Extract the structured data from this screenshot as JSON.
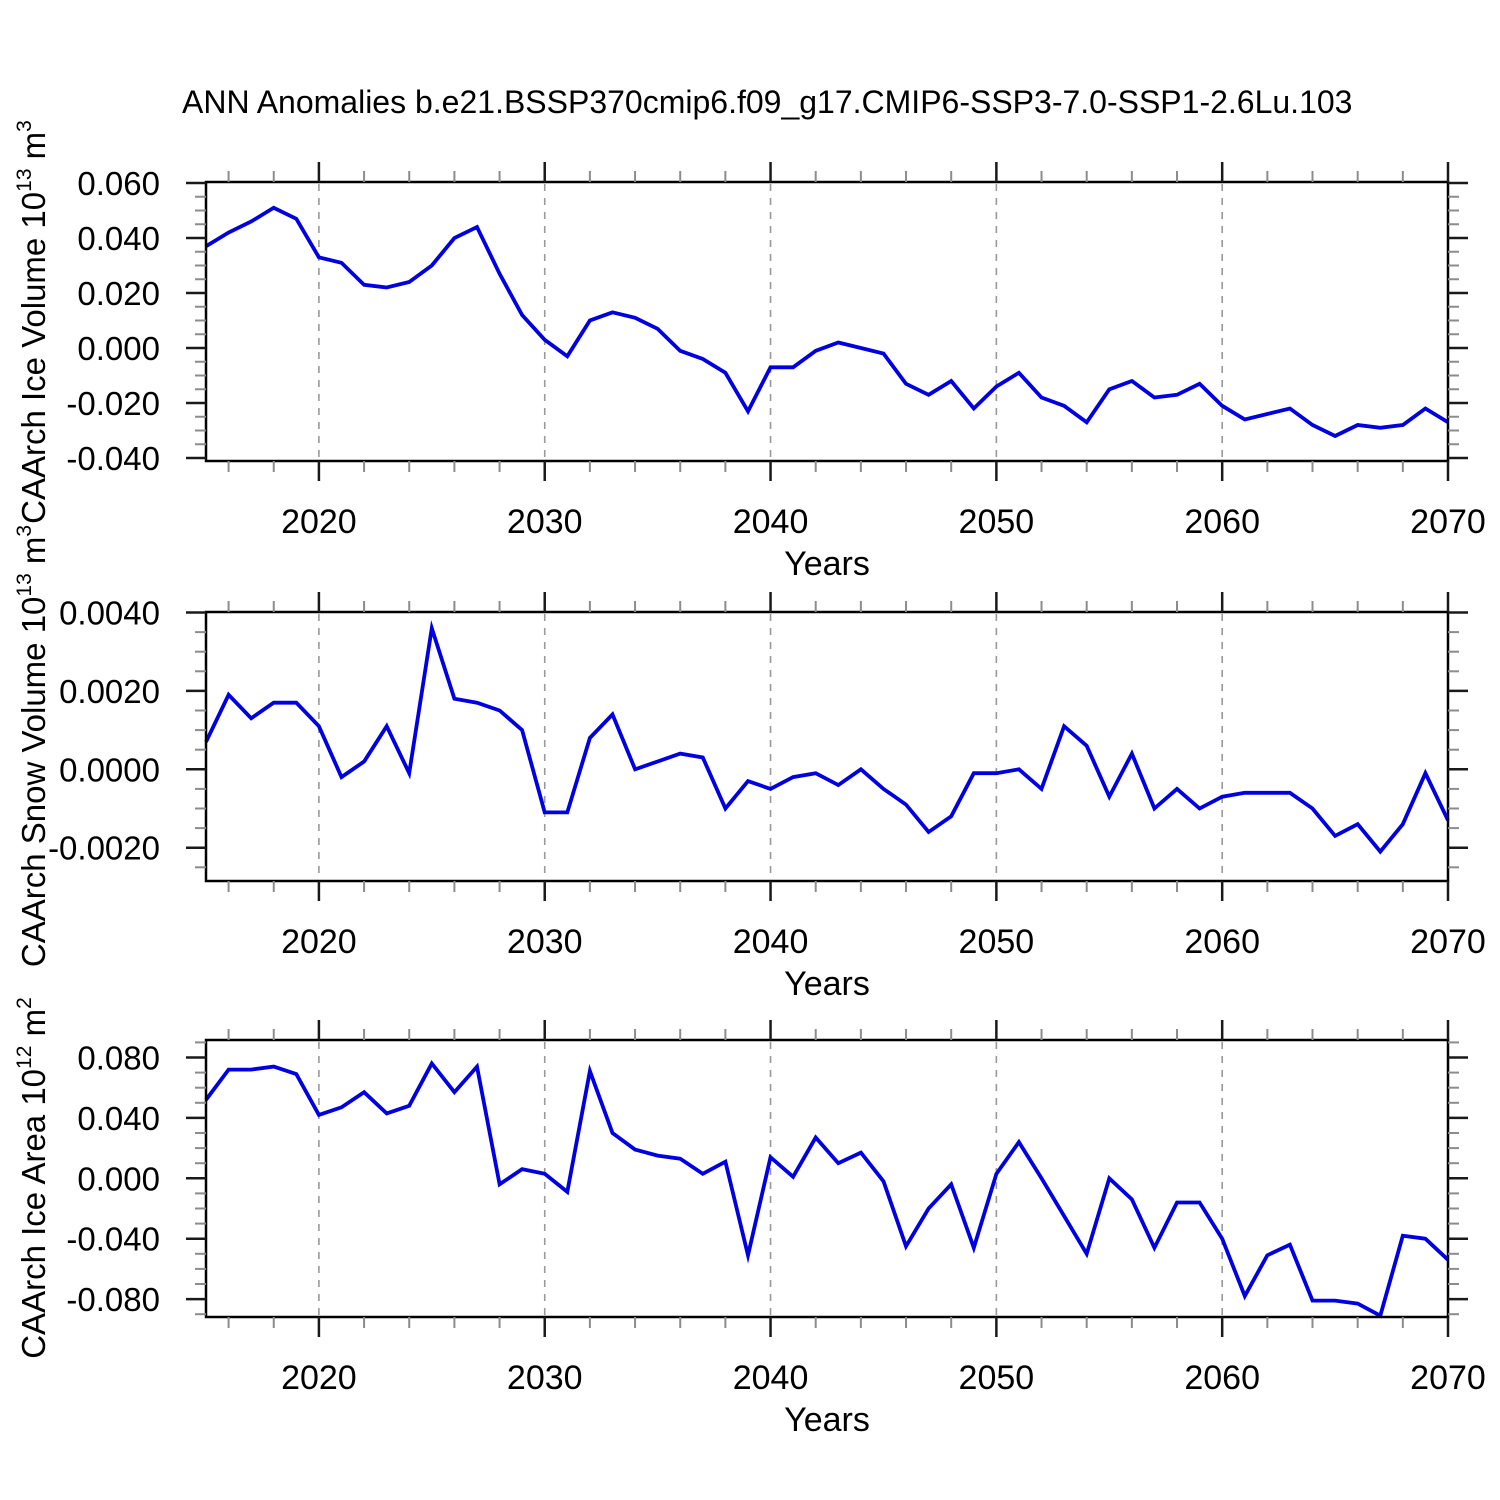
{
  "chart_data": {
    "type": "line",
    "title": "ANN Anomalies b.e21.BSSP370cmip6.f09_g17.CMIP6-SSP3-7.0-SSP1-2.6Lu.103",
    "x_label": "Years",
    "x_range": [
      2015,
      2070
    ],
    "x": [
      2015,
      2016,
      2017,
      2018,
      2019,
      2020,
      2021,
      2022,
      2023,
      2024,
      2025,
      2026,
      2027,
      2028,
      2029,
      2030,
      2031,
      2032,
      2033,
      2034,
      2035,
      2036,
      2037,
      2038,
      2039,
      2040,
      2041,
      2042,
      2043,
      2044,
      2045,
      2046,
      2047,
      2048,
      2049,
      2050,
      2051,
      2052,
      2053,
      2054,
      2055,
      2056,
      2057,
      2058,
      2059,
      2060,
      2061,
      2062,
      2063,
      2064,
      2065,
      2066,
      2067,
      2068,
      2069,
      2070
    ],
    "x_major_ticks": [
      2020,
      2030,
      2040,
      2050,
      2060,
      2070
    ],
    "x_tick_labels": [
      "2020",
      "2030",
      "2040",
      "2050",
      "2060",
      "2070"
    ],
    "x_minor_step_years": 2,
    "x_gridlines": [
      2020,
      2030,
      2040,
      2050,
      2060
    ],
    "grid_style": "dashed",
    "line_color": "#0000e0",
    "grid_color": "#999999",
    "legend": "none",
    "panels": [
      {
        "name": "CAArch Ice Volume",
        "unit": "10^13 m^3",
        "ylabel_text": "CAArch Ice Volume 10^13 m^3",
        "ylabel_parts": {
          "base": "CAArch Ice Volume 10",
          "sup1": "13",
          "mid": " m",
          "sup2": "3"
        },
        "ylim": [
          -0.041,
          0.0604
        ],
        "ytick_values": [
          0.06,
          0.04,
          0.02,
          0.0,
          -0.02,
          -0.04
        ],
        "ytick_labels": [
          "0.060",
          "0.040",
          "0.020",
          "0.000",
          "-0.020",
          "-0.040"
        ],
        "y_minor_step": 0.005,
        "values": [
          0.037,
          0.042,
          0.046,
          0.051,
          0.047,
          0.033,
          0.031,
          0.023,
          0.022,
          0.024,
          0.03,
          0.04,
          0.044,
          0.027,
          0.012,
          0.003,
          -0.003,
          0.01,
          0.013,
          0.011,
          0.007,
          -0.001,
          -0.004,
          -0.009,
          -0.023,
          -0.007,
          -0.007,
          -0.001,
          0.002,
          0.0,
          -0.002,
          -0.013,
          -0.017,
          -0.012,
          -0.022,
          -0.014,
          -0.009,
          -0.018,
          -0.021,
          -0.027,
          -0.015,
          -0.012,
          -0.018,
          -0.017,
          -0.013,
          -0.021,
          -0.026,
          -0.024,
          -0.022,
          -0.028,
          -0.032,
          -0.028,
          -0.029,
          -0.028,
          -0.022,
          -0.027
        ]
      },
      {
        "name": "CAArch Snow Volume",
        "unit": "10^13 m^3",
        "ylabel_text": "CAArch Snow Volume 10^13 m^3",
        "ylabel_parts": {
          "base": "CAArch Snow Volume 10",
          "sup1": "13",
          "mid": " m",
          "sup2": "3"
        },
        "ylim": [
          -0.00285,
          0.00401
        ],
        "ytick_values": [
          0.004,
          0.002,
          0.0,
          -0.002
        ],
        "ytick_labels": [
          "0.0040",
          "0.0020",
          "0.0000",
          "-0.0020"
        ],
        "y_minor_step": 0.0005,
        "values": [
          0.0007,
          0.0019,
          0.0013,
          0.0017,
          0.0017,
          0.0011,
          -0.0002,
          0.0002,
          0.0011,
          -0.0001,
          0.0036,
          0.0018,
          0.0017,
          0.0015,
          0.001,
          -0.0011,
          -0.0011,
          0.0008,
          0.0014,
          0.0,
          0.0002,
          0.0004,
          0.0003,
          -0.001,
          -0.0003,
          -0.0005,
          -0.0002,
          -0.0001,
          -0.0004,
          0.0,
          -0.0005,
          -0.0009,
          -0.0016,
          -0.0012,
          -0.0001,
          -0.0001,
          0.0,
          -0.0005,
          0.0011,
          0.0006,
          -0.0007,
          0.0004,
          -0.001,
          -0.0005,
          -0.001,
          -0.0007,
          -0.0006,
          -0.0006,
          -0.0006,
          -0.001,
          -0.0017,
          -0.0014,
          -0.0021,
          -0.0014,
          -0.0001,
          -0.0013
        ]
      },
      {
        "name": "CAArch Ice Area",
        "unit": "10^12 m^2",
        "ylabel_text": "CAArch Ice Area 10^12 m^2",
        "ylabel_parts": {
          "base": "CAArch Ice Area 10",
          "sup1": "12",
          "mid": " m",
          "sup2": "2"
        },
        "ylim": [
          -0.0918,
          0.0916
        ],
        "ytick_values": [
          0.08,
          0.04,
          0.0,
          -0.04,
          -0.08
        ],
        "ytick_labels": [
          "0.080",
          "0.040",
          "0.000",
          "-0.040",
          "-0.080"
        ],
        "y_minor_step": 0.01,
        "values": [
          0.052,
          0.072,
          0.072,
          0.074,
          0.069,
          0.042,
          0.047,
          0.057,
          0.043,
          0.048,
          0.076,
          0.057,
          0.074,
          -0.004,
          0.006,
          0.003,
          -0.009,
          0.071,
          0.03,
          0.019,
          0.015,
          0.013,
          0.003,
          0.011,
          -0.051,
          0.014,
          0.001,
          0.027,
          0.01,
          0.017,
          -0.002,
          -0.045,
          -0.02,
          -0.004,
          -0.046,
          0.003,
          0.024,
          0.0,
          -0.025,
          -0.05,
          0.0,
          -0.014,
          -0.046,
          -0.016,
          -0.016,
          -0.04,
          -0.078,
          -0.051,
          -0.044,
          -0.081,
          -0.081,
          -0.083,
          -0.091,
          -0.038,
          -0.04,
          -0.054
        ]
      }
    ]
  }
}
